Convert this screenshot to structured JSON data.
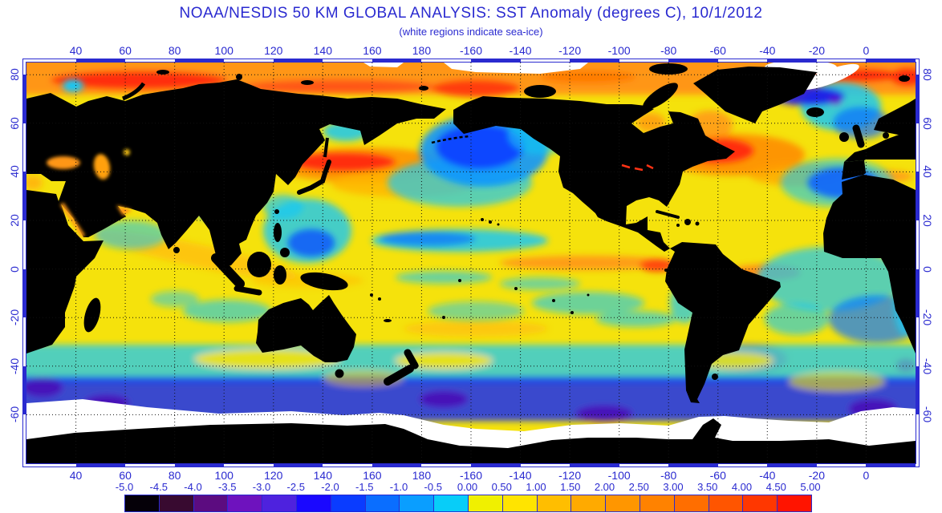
{
  "title": "NOAA/NESDIS 50 KM GLOBAL ANALYSIS: SST Anomaly (degrees C), 10/1/2012",
  "subtitle": "(white regions indicate sea-ice)",
  "colors": {
    "axis_blue": "#2A2AD0",
    "land_black": "#000000",
    "sea_ice_white": "#FFFFFF",
    "ocean_neutral_yellow": "#F5E20C"
  },
  "axes": {
    "lon_ticks": [
      "40",
      "60",
      "80",
      "100",
      "120",
      "140",
      "160",
      "180",
      "-160",
      "-140",
      "-120",
      "-100",
      "-80",
      "-60",
      "-40",
      "-20",
      "0"
    ],
    "lat_ticks": [
      "80",
      "60",
      "40",
      "20",
      "0",
      "-20",
      "-40",
      "-60"
    ]
  },
  "colorbar": {
    "units": "degrees C",
    "tick_labels": [
      "-5.0",
      "-4.5",
      "-4.0",
      "-3.5",
      "-3.0",
      "-2.5",
      "-2.0",
      "-1.5",
      "-1.0",
      "-0.5",
      "0.00",
      "0.50",
      "1.00",
      "1.50",
      "2.00",
      "2.50",
      "3.00",
      "3.50",
      "4.00",
      "4.50",
      "5.00"
    ],
    "cell_colors": [
      "#050008",
      "#380A30",
      "#5C0C80",
      "#6E12BE",
      "#4E22DE",
      "#1A08FF",
      "#0A3CFF",
      "#0A6EFF",
      "#0A9EFF",
      "#08CDF8",
      "#F0F000",
      "#FFE400",
      "#FFBE00",
      "#FFAA00",
      "#FF9600",
      "#FF8200",
      "#FF6E00",
      "#FF5500",
      "#FF3700",
      "#FF1400"
    ]
  },
  "chart_data": {
    "type": "heatmap",
    "title": "NOAA/NESDIS 50 KM GLOBAL ANALYSIS: SST Anomaly (degrees C), 10/1/2012",
    "subtitle": "(white regions indicate sea-ice)",
    "x_ticks_deg_lon": [
      40,
      60,
      80,
      100,
      120,
      140,
      160,
      180,
      -160,
      -140,
      -120,
      -100,
      -80,
      -60,
      -40,
      -20,
      0
    ],
    "y_ticks_deg_lat": [
      80,
      60,
      40,
      20,
      0,
      -20,
      -40,
      -60
    ],
    "colorbar_range": [
      -5.0,
      5.0
    ],
    "colorbar_step": 0.5,
    "colorbar_units": "degrees C",
    "grid": true,
    "legend_position": "bottom"
  }
}
